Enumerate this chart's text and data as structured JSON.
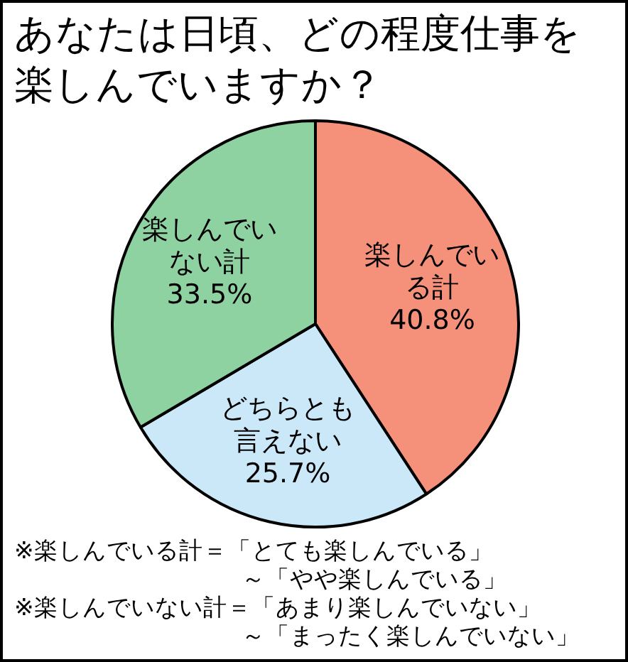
{
  "chart_data": {
    "type": "pie",
    "title": "あなたは日頃、どの程度仕事を楽しんでいますか？",
    "categories": [
      "楽しんでいる計",
      "どちらとも言えない",
      "楽しんでいない計"
    ],
    "values": [
      40.8,
      25.7,
      33.5
    ],
    "colors": [
      "#f5917b",
      "#cbe8f9",
      "#8fd2a2"
    ],
    "value_labels": [
      "40.8%",
      "25.7%",
      "33.5%"
    ],
    "legend": false,
    "annotations": [
      "※楽しんでいる計＝「とても楽しんでいる」～「やや楽しんでいる」",
      "※楽しんでいない計＝「あまり楽しんでいない」～「まったく楽しんでいない」"
    ]
  }
}
